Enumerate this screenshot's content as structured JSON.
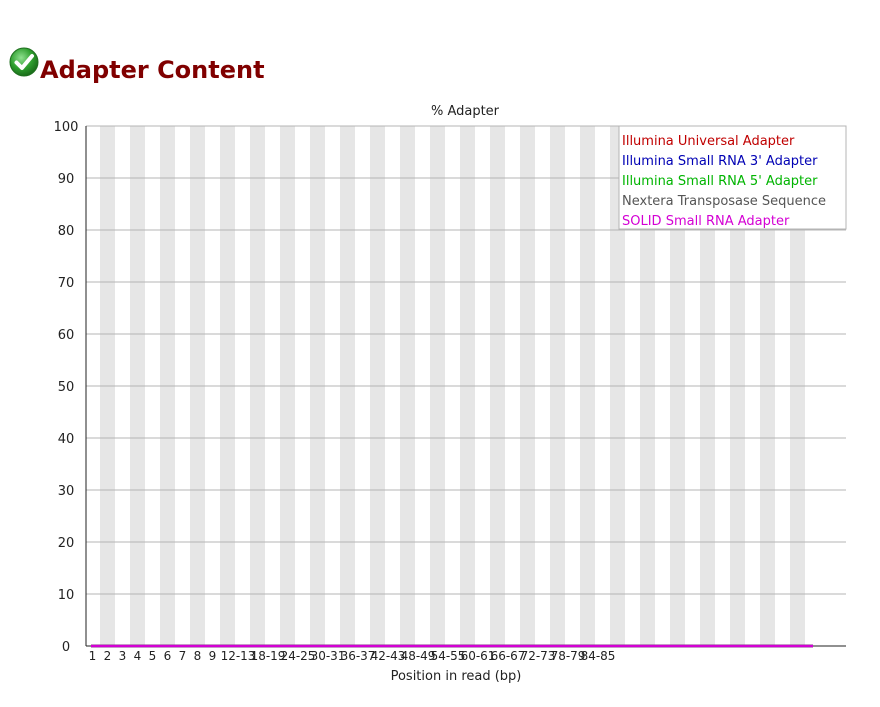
{
  "page": {
    "heading": "Adapter Content",
    "status_icon": "check-icon",
    "status_color": "#2e9e2e"
  },
  "chart_data": {
    "type": "line",
    "title": "% Adapter",
    "xlabel": "Position in read (bp)",
    "ylabel": "",
    "ylim": [
      0,
      100
    ],
    "yticks": [
      0,
      10,
      20,
      30,
      40,
      50,
      60,
      70,
      80,
      90,
      100
    ],
    "grid": true,
    "legend_position": "top-right",
    "categories": [
      "1",
      "2",
      "3",
      "4",
      "5",
      "6",
      "7",
      "8",
      "9",
      "12-13",
      "18-19",
      "24-25",
      "30-31",
      "36-37",
      "42-43",
      "48-49",
      "54-55",
      "60-61",
      "66-67",
      "72-73",
      "78-79",
      "84-85"
    ],
    "series": [
      {
        "name": "Illumina Universal Adapter",
        "color": "#c00000",
        "values": [
          0,
          0,
          0,
          0,
          0,
          0,
          0,
          0,
          0,
          0,
          0,
          0,
          0,
          0,
          0,
          0,
          0,
          0,
          0,
          0,
          0,
          0
        ]
      },
      {
        "name": "Illumina Small RNA 3' Adapter",
        "color": "#0000b4",
        "values": [
          0,
          0,
          0,
          0,
          0,
          0,
          0,
          0,
          0,
          0,
          0,
          0,
          0,
          0,
          0,
          0,
          0,
          0,
          0,
          0,
          0,
          0
        ]
      },
      {
        "name": "Illumina Small RNA 5' Adapter",
        "color": "#00b400",
        "values": [
          0,
          0,
          0,
          0,
          0,
          0,
          0,
          0,
          0,
          0,
          0,
          0,
          0,
          0,
          0,
          0,
          0,
          0,
          0,
          0,
          0,
          0
        ]
      },
      {
        "name": "Nextera Transposase Sequence",
        "color": "#555555",
        "values": [
          0,
          0,
          0,
          0,
          0,
          0,
          0,
          0,
          0,
          0,
          0,
          0,
          0,
          0,
          0,
          0,
          0,
          0,
          0,
          0,
          0,
          0
        ]
      },
      {
        "name": "SOLID Small RNA Adapter",
        "color": "#d400d4",
        "values": [
          0,
          0,
          0,
          0,
          0,
          0,
          0,
          0,
          0,
          0,
          0,
          0,
          0,
          0,
          0,
          0,
          0,
          0,
          0,
          0,
          0,
          0
        ]
      }
    ]
  }
}
